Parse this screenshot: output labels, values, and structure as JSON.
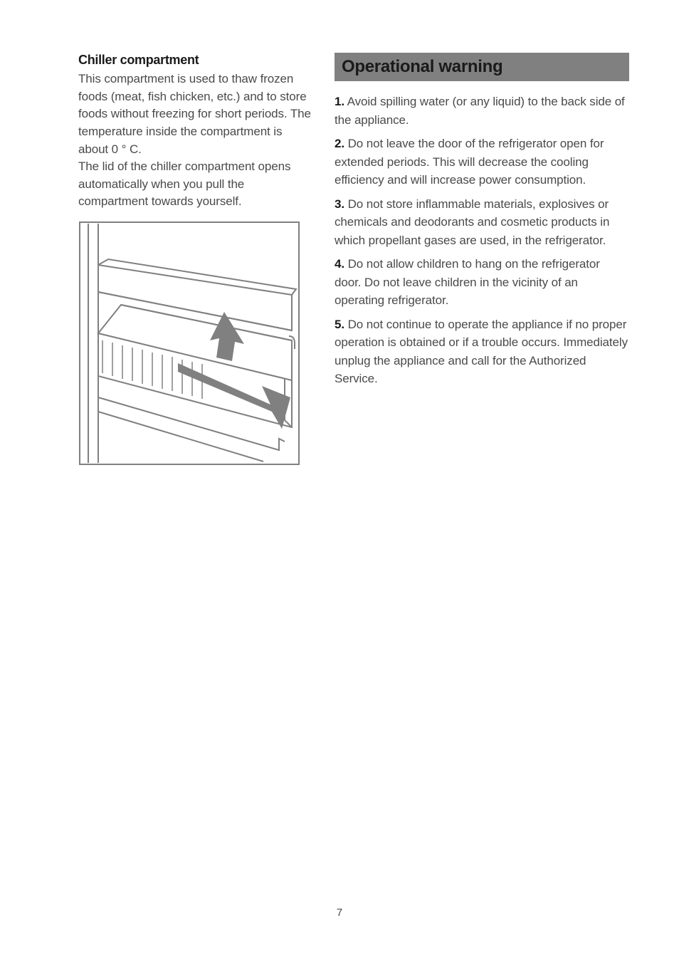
{
  "pageNumber": "7",
  "left": {
    "heading": "Chiller compartment",
    "body": "This compartment is used to thaw frozen foods (meat, fish chicken,  etc.) and to store foods without freezing for short periods. The temperature inside the compartment is about 0 ° C.\nThe lid of the chiller compartment opens automatically when you pull the compartment towards yourself."
  },
  "right": {
    "sectionTitle": "Operational warning",
    "items": [
      {
        "num": "1.",
        "text": " Avoid spilling water (or any liquid) to the back side of the appliance."
      },
      {
        "num": "2.",
        "text": " Do not leave the door of the refrigerator open for extended periods. This will decrease the cooling efficiency and will increase power consumption."
      },
      {
        "num": "3.",
        "text": " Do not store inflammable materials, explosives or chemicals and deodorants and cosmetic products in which propellant gases are used, in the refrigerator."
      },
      {
        "num": "4.",
        "text": " Do not allow children to hang on the refrigerator door. Do not leave children in the vicinity of an operating refrigerator."
      },
      {
        "num": "5.",
        "text": " Do not continue to operate the appliance if no proper operation is obtained or if a trouble occurs. Immediately unplug the appliance and call for the Authorized Service."
      }
    ]
  },
  "illustration": {
    "strokeColor": "#808080",
    "arrowColor": "#808080",
    "background": "#ffffff"
  }
}
